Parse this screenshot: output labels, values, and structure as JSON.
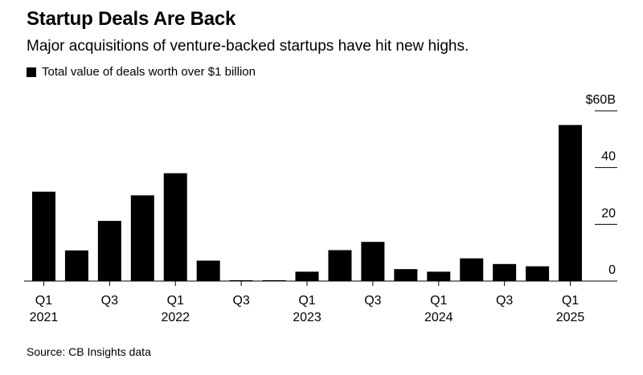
{
  "header": {
    "title": "Startup Deals Are Back",
    "subtitle": "Major acquisitions of venture-backed startups have hit new highs.",
    "legend_label": "Total value of deals worth over $1 billion"
  },
  "footer": {
    "source": "Source: CB Insights data"
  },
  "colors": {
    "bar": "#000000",
    "axis": "#000000",
    "background": "#ffffff"
  },
  "chart_data": {
    "type": "bar",
    "title": "Startup Deals Are Back",
    "subtitle": "Major acquisitions of venture-backed startups have hit new highs.",
    "ylabel": "",
    "xlabel": "",
    "ylim": [
      0,
      60
    ],
    "grid": false,
    "legend_position": "top-left",
    "series": [
      {
        "name": "Total value of deals worth over $1 billion",
        "values": [
          31.5,
          10.8,
          21.2,
          30.2,
          38.0,
          7.2,
          0.3,
          0.3,
          3.3,
          10.9,
          13.8,
          4.2,
          3.3,
          8.0,
          6.0,
          5.2,
          55.0
        ]
      }
    ],
    "categories": [
      "Q1 2021",
      "Q2 2021",
      "Q3 2021",
      "Q4 2021",
      "Q1 2022",
      "Q2 2022",
      "Q3 2022",
      "Q4 2022",
      "Q1 2023",
      "Q2 2023",
      "Q3 2023",
      "Q4 2023",
      "Q1 2024",
      "Q2 2024",
      "Q3 2024",
      "Q4 2024",
      "Q1 2025"
    ],
    "x_tick_labels": [
      {
        "index": 0,
        "line1": "Q1",
        "line2": "2021"
      },
      {
        "index": 2,
        "line1": "Q3",
        "line2": ""
      },
      {
        "index": 4,
        "line1": "Q1",
        "line2": "2022"
      },
      {
        "index": 6,
        "line1": "Q3",
        "line2": ""
      },
      {
        "index": 8,
        "line1": "Q1",
        "line2": "2023"
      },
      {
        "index": 10,
        "line1": "Q3",
        "line2": ""
      },
      {
        "index": 12,
        "line1": "Q1",
        "line2": "2024"
      },
      {
        "index": 14,
        "line1": "Q3",
        "line2": ""
      },
      {
        "index": 16,
        "line1": "Q1",
        "line2": "2025"
      }
    ],
    "y_ticks": [
      {
        "value": 60,
        "label": "$60B"
      },
      {
        "value": 40,
        "label": "40"
      },
      {
        "value": 20,
        "label": "20"
      },
      {
        "value": 0,
        "label": "0"
      }
    ]
  }
}
